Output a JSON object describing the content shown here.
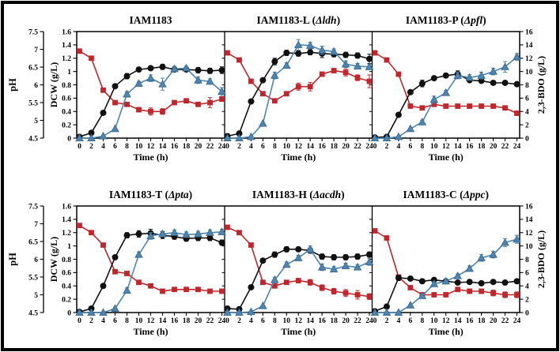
{
  "figure": {
    "background": "#ffffff",
    "border_color": "#000000"
  },
  "colors": {
    "ph_series": "#c0262c",
    "dcw_series": "#111111",
    "bdo_series": "#4e84ad",
    "bdo_edge": "#36678f",
    "axis": "#000000"
  },
  "chart_data": {
    "type": "line",
    "x_label": "Time (h)",
    "x": [
      0,
      2,
      4,
      6,
      8,
      10,
      12,
      14,
      16,
      18,
      20,
      22,
      24
    ],
    "axes": {
      "x": {
        "range": [
          0,
          24
        ],
        "ticks": [
          0,
          2,
          4,
          6,
          8,
          10,
          12,
          14,
          16,
          18,
          20,
          22,
          24
        ]
      },
      "ph": {
        "label": "pH",
        "range": [
          4.5,
          7.5
        ],
        "ticks": [
          4.5,
          5,
          5.5,
          6,
          6.5,
          7,
          7.5
        ]
      },
      "dcw": {
        "label": "DCW (g/L)",
        "range": [
          0,
          1.6
        ],
        "ticks": [
          0,
          0.2,
          0.4,
          0.6,
          0.8,
          1,
          1.2,
          1.4,
          1.6
        ]
      },
      "bdo": {
        "label": "2,3-BDO (g/L)",
        "range": [
          0,
          16
        ],
        "ticks": [
          0,
          2,
          4,
          6,
          8,
          10,
          12,
          14,
          16
        ]
      }
    },
    "series_meta": [
      {
        "key": "ph",
        "name": "pH",
        "axis": "ph",
        "marker": "square",
        "color": "#c0262c"
      },
      {
        "key": "dcw",
        "name": "DCW (g/L)",
        "axis": "dcw",
        "marker": "circle",
        "color": "#111111"
      },
      {
        "key": "bdo",
        "name": "2,3-BDO (g/L)",
        "axis": "bdo",
        "marker": "triangle",
        "color": "#4e84ad"
      }
    ],
    "panels": [
      {
        "strain": "IAM1183",
        "gene": null,
        "ph": {
          "values": [
            6.95,
            6.75,
            5.85,
            5.5,
            5.45,
            5.3,
            5.25,
            5.25,
            5.5,
            5.55,
            5.45,
            5.5,
            5.6
          ],
          "err": [
            0,
            0,
            0,
            0,
            0.05,
            0.06,
            0.1,
            0.08,
            0.05,
            0.06,
            0.05,
            0.14,
            0.06
          ]
        },
        "dcw": {
          "values": [
            0.02,
            0.08,
            0.38,
            0.78,
            0.93,
            1.03,
            1.05,
            1.07,
            1.03,
            1.03,
            1.02,
            1.01,
            1.02
          ],
          "err": [
            0,
            0,
            0,
            0,
            0.04,
            0.03,
            0.03,
            0.04,
            0.03,
            0.03,
            0.04,
            0.04,
            0.05
          ]
        },
        "bdo": {
          "values": [
            0,
            0,
            0.3,
            1.4,
            6.6,
            8.2,
            9.0,
            8.1,
            10.4,
            10.5,
            8.7,
            8.5,
            7.0
          ],
          "err": [
            0,
            0,
            0,
            0,
            0.4,
            0.3,
            0.5,
            0.9,
            0.4,
            0.3,
            0.5,
            0.4,
            0.6
          ]
        }
      },
      {
        "strain": "IAM1183-L",
        "gene": "Δldh",
        "ph": {
          "values": [
            6.9,
            6.7,
            6.1,
            5.75,
            5.55,
            5.75,
            5.95,
            5.95,
            6.3,
            6.4,
            6.35,
            6.2,
            6.1
          ],
          "err": [
            0,
            0,
            0,
            0,
            0,
            0,
            0.1,
            0.12,
            0.06,
            0.05,
            0.1,
            0.08,
            0.18
          ]
        },
        "dcw": {
          "values": [
            0.03,
            0.07,
            0.55,
            0.87,
            1.15,
            1.28,
            1.27,
            1.29,
            1.27,
            1.26,
            1.25,
            1.24,
            1.19
          ],
          "err": [
            0,
            0,
            0,
            0,
            0.05,
            0.04,
            0.04,
            0.04,
            0.06,
            0.04,
            0.04,
            0.04,
            0.07
          ]
        },
        "bdo": {
          "values": [
            0,
            0,
            0.2,
            2.2,
            9.4,
            10.9,
            14.0,
            13.9,
            13.2,
            13.0,
            11.1,
            10.8,
            10.7
          ],
          "err": [
            0,
            0,
            0,
            0,
            0.5,
            0.4,
            0.8,
            0.5,
            0.6,
            0.4,
            0.5,
            0.4,
            0.4
          ]
        }
      },
      {
        "strain": "IAM1183-P",
        "gene": "Δpfl",
        "ph": {
          "values": [
            6.9,
            6.7,
            6.3,
            5.4,
            5.35,
            5.45,
            5.4,
            5.4,
            5.4,
            5.4,
            5.4,
            5.35,
            5.2
          ],
          "err": [
            0,
            0,
            0,
            0,
            0,
            0,
            0,
            0,
            0,
            0,
            0,
            0,
            0.06
          ]
        },
        "dcw": {
          "values": [
            0.01,
            0.02,
            0.35,
            0.69,
            0.82,
            0.9,
            0.94,
            0.96,
            0.87,
            0.86,
            0.83,
            0.83,
            0.81
          ],
          "err": [
            0,
            0,
            0,
            0,
            0.05,
            0.03,
            0.03,
            0.05,
            0.03,
            0.03,
            0.03,
            0.03,
            0.03
          ]
        },
        "bdo": {
          "values": [
            0,
            0,
            0.2,
            1.4,
            2.4,
            5.8,
            6.8,
            9.4,
            9.1,
            9.4,
            10.0,
            10.7,
            12.2
          ],
          "err": [
            0,
            0,
            0,
            0,
            0.3,
            0.5,
            0.4,
            0.5,
            0.4,
            0.5,
            0.5,
            0.8,
            0.5
          ]
        }
      },
      {
        "strain": "IAM1183-T",
        "gene": "Δpta",
        "ph": {
          "values": [
            6.95,
            6.75,
            6.4,
            5.65,
            5.6,
            5.35,
            5.25,
            5.1,
            5.15,
            5.15,
            5.15,
            5.1,
            5.1
          ],
          "err": [
            0,
            0,
            0,
            0,
            0,
            0,
            0,
            0.05,
            0.05,
            0.05,
            0.05,
            0.05,
            0.05
          ]
        },
        "dcw": {
          "values": [
            0.01,
            0.06,
            0.4,
            0.83,
            1.16,
            1.18,
            1.19,
            1.16,
            1.14,
            1.11,
            1.12,
            1.12,
            1.05
          ],
          "err": [
            0,
            0,
            0,
            0,
            0.04,
            0.05,
            0.06,
            0.05,
            0.04,
            0.04,
            0.04,
            0.04,
            0.04
          ]
        },
        "bdo": {
          "values": [
            0,
            0,
            0,
            0.6,
            3.3,
            8.7,
            11.5,
            11.8,
            12.0,
            11.7,
            11.8,
            12.0,
            12.1
          ],
          "err": [
            0,
            0,
            0,
            0,
            0.4,
            0.4,
            0.5,
            0.4,
            0.4,
            0.4,
            0.4,
            0.4,
            0.4
          ]
        }
      },
      {
        "strain": "IAM1183-H",
        "gene": "Δacdh",
        "ph": {
          "values": [
            6.9,
            6.75,
            6.4,
            5.35,
            5.25,
            5.35,
            5.4,
            5.35,
            5.2,
            5.1,
            5.05,
            5.0,
            4.95
          ],
          "err": [
            0,
            0,
            0,
            0,
            0,
            0,
            0.06,
            0.08,
            0.08,
            0.08,
            0.1,
            0.12,
            0.08
          ]
        },
        "dcw": {
          "values": [
            0.06,
            0.05,
            0.38,
            0.78,
            0.87,
            0.95,
            0.95,
            0.93,
            0.84,
            0.83,
            0.83,
            0.84,
            0.87
          ],
          "err": [
            0,
            0,
            0,
            0,
            0.04,
            0.04,
            0.03,
            0.04,
            0.04,
            0.04,
            0.04,
            0.04,
            0.04
          ]
        },
        "bdo": {
          "values": [
            0,
            0,
            0.1,
            1.0,
            4.9,
            7.2,
            8.2,
            9.5,
            6.8,
            6.5,
            7.0,
            6.8,
            7.6
          ],
          "err": [
            0,
            0,
            0,
            0,
            0.4,
            0.4,
            0.4,
            0.5,
            0.5,
            0.4,
            0.4,
            0.4,
            0.5
          ]
        }
      },
      {
        "strain": "IAM1183-C",
        "gene": "Δppc",
        "ph": {
          "values": [
            6.8,
            6.6,
            5.5,
            5.2,
            5.0,
            5.0,
            5.0,
            5.15,
            5.1,
            5.1,
            5.05,
            5.0,
            5.0
          ],
          "err": [
            0,
            0,
            0,
            0,
            0,
            0,
            0,
            0.06,
            0.06,
            0.06,
            0.08,
            0.08,
            0.08
          ]
        },
        "dcw": {
          "values": [
            0.02,
            0.09,
            0.52,
            0.51,
            0.47,
            0.49,
            0.47,
            0.45,
            0.46,
            0.44,
            0.46,
            0.45,
            0.47
          ],
          "err": [
            0,
            0,
            0.04,
            0.03,
            0.03,
            0.03,
            0.03,
            0.03,
            0.03,
            0.03,
            0.03,
            0.03,
            0.03
          ]
        },
        "bdo": {
          "values": [
            0,
            0,
            0,
            1.1,
            2.5,
            4.3,
            4.7,
            5.5,
            6.6,
            8.2,
            8.7,
            10.5,
            11.0
          ],
          "err": [
            0,
            0,
            0,
            0,
            0.3,
            0.3,
            0.3,
            0.3,
            0.4,
            0.5,
            0.5,
            0.6,
            0.6
          ]
        }
      }
    ]
  }
}
